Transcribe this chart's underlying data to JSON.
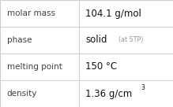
{
  "rows": [
    {
      "label": "molar mass",
      "value": "104.1 g/mol",
      "annotation": null,
      "superscript": null
    },
    {
      "label": "phase",
      "value": "solid",
      "annotation": "(at STP)",
      "superscript": null
    },
    {
      "label": "melting point",
      "value": "150 °C",
      "annotation": null,
      "superscript": null
    },
    {
      "label": "density",
      "value": "1.36 g/cm",
      "annotation": null,
      "superscript": "3"
    }
  ],
  "background_color": "#ffffff",
  "border_color": "#cccccc",
  "label_color": "#404040",
  "value_color": "#111111",
  "annotation_color": "#999999",
  "label_fontsize": 7.5,
  "value_fontsize": 8.5,
  "annotation_fontsize": 5.8,
  "superscript_fontsize": 5.5,
  "col_split": 0.455
}
